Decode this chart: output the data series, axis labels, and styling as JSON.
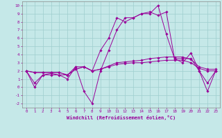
{
  "title": "",
  "xlabel": "Windchill (Refroidissement éolien,°C)",
  "ylabel": "",
  "background_color": "#c5e8e8",
  "grid_color": "#9ecece",
  "line_color": "#990099",
  "xlim": [
    -0.5,
    23.5
  ],
  "ylim": [
    -2.5,
    10.5
  ],
  "xticks": [
    0,
    1,
    2,
    3,
    4,
    5,
    6,
    7,
    8,
    9,
    10,
    11,
    12,
    13,
    14,
    15,
    16,
    17,
    18,
    19,
    20,
    21,
    22,
    23
  ],
  "yticks": [
    -2,
    -1,
    0,
    1,
    2,
    3,
    4,
    5,
    6,
    7,
    8,
    9,
    10
  ],
  "series": [
    [
      2,
      0,
      1.5,
      1.7,
      1.5,
      1.5,
      2.5,
      2.5,
      2,
      4.5,
      6,
      8.5,
      8,
      8.5,
      9,
      9,
      10,
      6.5,
      3.5,
      3.5,
      3.5,
      2,
      0.5,
      2
    ],
    [
      2,
      1.8,
      1.8,
      1.8,
      1.8,
      1.5,
      2.2,
      2.5,
      2,
      2.2,
      2.6,
      3.0,
      3.1,
      3.2,
      3.3,
      3.5,
      3.6,
      3.7,
      3.7,
      3.7,
      3.4,
      2.5,
      2.2,
      2.2
    ],
    [
      2,
      1.8,
      1.8,
      1.8,
      1.8,
      1.5,
      2.2,
      2.5,
      2,
      2.2,
      2.5,
      2.8,
      2.9,
      3.0,
      3.0,
      3.1,
      3.2,
      3.3,
      3.3,
      3.3,
      3.0,
      2.3,
      2.0,
      2.0
    ],
    [
      2,
      0.5,
      1.5,
      1.5,
      1.5,
      1.0,
      2.5,
      -0.5,
      -2,
      2,
      4.5,
      7,
      8.5,
      8.5,
      9,
      9.2,
      8.8,
      9.2,
      3.5,
      3.0,
      4.2,
      2,
      -0.5,
      2
    ]
  ]
}
